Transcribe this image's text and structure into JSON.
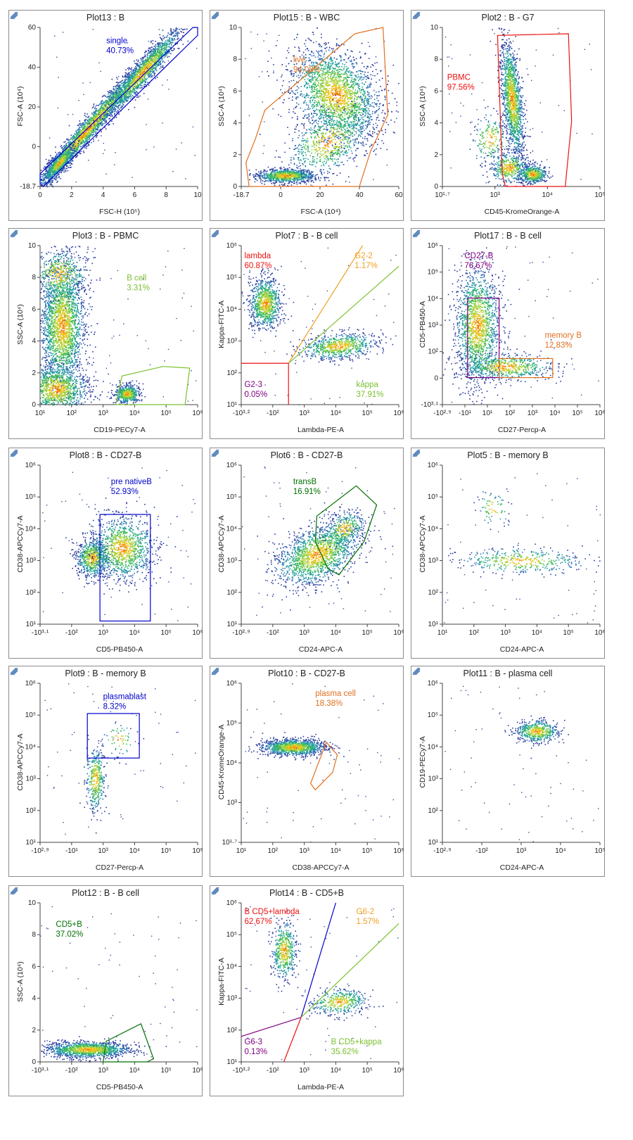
{
  "chart_data": [
    {
      "id": "p13",
      "title": "Plot13 : B",
      "type": "scatter",
      "xlabel": "FSC-H (10⁵)",
      "ylabel": "FSC-A (10⁴)",
      "xticks": [
        "0",
        "2",
        "4",
        "6",
        "8",
        "10"
      ],
      "yticks": [
        "-18.7",
        "0",
        "20",
        "40",
        "60"
      ],
      "gates": [
        {
          "name": "single",
          "pct": "40.73%",
          "color": "#0000cc"
        }
      ]
    },
    {
      "id": "p15",
      "title": "Plot15 : B - WBC",
      "type": "scatter",
      "xlabel": "FSC-A (10⁴)",
      "ylabel": "SSC-A (10⁴)",
      "xticks": [
        "-18.7",
        "0",
        "20",
        "40",
        "60"
      ],
      "yticks": [
        "0",
        "2",
        "4",
        "6",
        "8",
        "10"
      ],
      "gates": [
        {
          "name": "live",
          "pct": "94.08%",
          "color": "#e07020"
        }
      ]
    },
    {
      "id": "p2",
      "title": "Plot2 : B - G7",
      "type": "scatter",
      "xlabel": "CD45-KromeOrange-A",
      "ylabel": "SSC-A (10⁴)",
      "xticks": [
        "10¹·⁷",
        "10³",
        "10⁴",
        "10⁵"
      ],
      "yticks": [
        "0",
        "2",
        "4",
        "6",
        "8",
        "10"
      ],
      "gates": [
        {
          "name": "PBMC",
          "pct": "97.56%",
          "color": "#ee1111"
        }
      ]
    },
    {
      "id": "p3",
      "title": "Plot3 : B - PBMC",
      "type": "scatter",
      "xlabel": "CD19-PECy7-A",
      "ylabel": "SSC-A (10⁴)",
      "xticks": [
        "10¹",
        "10²",
        "10³",
        "10⁴",
        "10⁵",
        "10⁶"
      ],
      "yticks": [
        "0",
        "2",
        "4",
        "6",
        "8",
        "10"
      ],
      "gates": [
        {
          "name": "B cell",
          "pct": "3.31%",
          "color": "#7cc030"
        }
      ]
    },
    {
      "id": "p7",
      "title": "Plot7 : B - B cell",
      "type": "scatter",
      "xlabel": "Lambda-PE-A",
      "ylabel": "Kappa-FITC-A",
      "xticks": [
        "-10³·²",
        "-10²",
        "10³",
        "10⁴",
        "10⁵",
        "10⁶"
      ],
      "yticks": [
        "10¹",
        "10²",
        "10³",
        "10⁴",
        "10⁵",
        "10⁶"
      ],
      "gates": [
        {
          "name": "lambda",
          "pct": "60.87%",
          "color": "#ee1111"
        },
        {
          "name": "G2-2",
          "pct": "1.17%",
          "color": "#f0a020"
        },
        {
          "name": "G2-3",
          "pct": "0.05%",
          "color": "#800080"
        },
        {
          "name": "kappa",
          "pct": "37.91%",
          "color": "#7cc030"
        }
      ]
    },
    {
      "id": "p17",
      "title": "Plot17 : B - B cell",
      "type": "scatter",
      "xlabel": "CD27-Percp-A",
      "ylabel": "CD5-PB450-A",
      "xticks": [
        "-10²·⁹",
        "-10¹",
        "10¹",
        "10²",
        "10³",
        "10⁴",
        "10⁵",
        "10⁶"
      ],
      "yticks": [
        "-10³·¹",
        "0",
        "10²",
        "10³",
        "10⁴",
        "10⁵",
        "10⁶"
      ],
      "gates": [
        {
          "name": "CD27-B",
          "pct": "76.67%",
          "color": "#800080"
        },
        {
          "name": "memory B",
          "pct": "12.83%",
          "color": "#e07020"
        }
      ]
    },
    {
      "id": "p8",
      "title": "Plot8 : B - CD27-B",
      "type": "scatter",
      "xlabel": "CD5-PB450-A",
      "ylabel": "CD38-APCCy7-A",
      "xticks": [
        "-10³·¹",
        "-10²",
        "10³",
        "10⁴",
        "10⁵",
        "10⁶"
      ],
      "yticks": [
        "10¹",
        "10²",
        "10³",
        "10⁴",
        "10⁵",
        "10⁶"
      ],
      "gates": [
        {
          "name": "pre nativeB",
          "pct": "52.93%",
          "color": "#0000cc"
        }
      ]
    },
    {
      "id": "p6",
      "title": "Plot6 : B - CD27-B",
      "type": "scatter",
      "xlabel": "CD24-APC-A",
      "ylabel": "CD38-APCCy7-A",
      "xticks": [
        "-10²·⁹",
        "-10²",
        "10³",
        "10⁴",
        "10⁵",
        "10⁶"
      ],
      "yticks": [
        "10¹",
        "10²",
        "10³",
        "10⁴",
        "10⁵",
        "10⁶"
      ],
      "gates": [
        {
          "name": "transB",
          "pct": "16.91%",
          "color": "#007000"
        }
      ]
    },
    {
      "id": "p5",
      "title": "Plot5 : B - memory B",
      "type": "scatter",
      "xlabel": "CD24-APC-A",
      "ylabel": "CD38-APCCy7-A",
      "xticks": [
        "10¹",
        "10²",
        "10³",
        "10⁴",
        "10⁵",
        "10⁶"
      ],
      "yticks": [
        "10¹",
        "10²",
        "10³",
        "10⁴",
        "10⁵",
        "10⁶"
      ],
      "gates": []
    },
    {
      "id": "p9",
      "title": "Plot9 : B - memory B",
      "type": "scatter",
      "xlabel": "CD27-Percp-A",
      "ylabel": "CD38-APCCy7-A",
      "xticks": [
        "-10²·⁹",
        "-10¹",
        "10³",
        "10⁴",
        "10⁵",
        "10⁶"
      ],
      "yticks": [
        "10¹",
        "10²",
        "10³",
        "10⁴",
        "10⁵",
        "10⁶"
      ],
      "gates": [
        {
          "name": "plasmablast",
          "pct": "8.32%",
          "color": "#0000cc"
        }
      ]
    },
    {
      "id": "p10",
      "title": "Plot10 : B - CD27-B",
      "type": "scatter",
      "xlabel": "CD38-APCCy7-A",
      "ylabel": "CD45-KromeOrange-A",
      "xticks": [
        "10¹",
        "10²",
        "10³",
        "10⁴",
        "10⁵",
        "10⁶"
      ],
      "yticks": [
        "10¹·⁷",
        "10³",
        "10⁴",
        "10⁵",
        "10⁶"
      ],
      "gates": [
        {
          "name": "plasma cell",
          "pct": "18.38%",
          "color": "#e07020"
        }
      ]
    },
    {
      "id": "p11",
      "title": "Plot11 : B - plasma cell",
      "type": "scatter",
      "xlabel": "CD24-APC-A",
      "ylabel": "CD19-PECy7-A",
      "xticks": [
        "-10²·⁹",
        "-10²",
        "10³",
        "10⁴",
        "10⁵"
      ],
      "yticks": [
        "10¹",
        "10²",
        "10³",
        "10⁴",
        "10⁵",
        "10⁶"
      ],
      "gates": []
    },
    {
      "id": "p12",
      "title": "Plot12 : B - B cell",
      "type": "scatter",
      "xlabel": "CD5-PB450-A",
      "ylabel": "SSC-A (10⁴)",
      "xticks": [
        "-10³·¹",
        "-10²",
        "10³",
        "10⁴",
        "10⁵",
        "10⁶"
      ],
      "yticks": [
        "0",
        "2",
        "4",
        "6",
        "8",
        "10"
      ],
      "gates": [
        {
          "name": "CD5+B",
          "pct": "37.02%",
          "color": "#007000"
        }
      ]
    },
    {
      "id": "p14",
      "title": "Plot14 : B - CD5+B",
      "type": "scatter",
      "xlabel": "Lambda-PE-A",
      "ylabel": "Kappa-FITC-A",
      "xticks": [
        "-10³·²",
        "-10²",
        "10³",
        "10⁴",
        "10⁵",
        "10⁶"
      ],
      "yticks": [
        "10¹",
        "10²",
        "10³",
        "10⁴",
        "10⁵",
        "10⁶"
      ],
      "gates": [
        {
          "name": "B CD5+lambda",
          "pct": "62.67%",
          "color": "#ee1111"
        },
        {
          "name": "G6-2",
          "pct": "1.57%",
          "color": "#f0a020"
        },
        {
          "name": "G6-3",
          "pct": "0.13%",
          "color": "#800080"
        },
        {
          "name": "B CD5+kappa",
          "pct": "35.62%",
          "color": "#7cc030"
        }
      ]
    }
  ]
}
